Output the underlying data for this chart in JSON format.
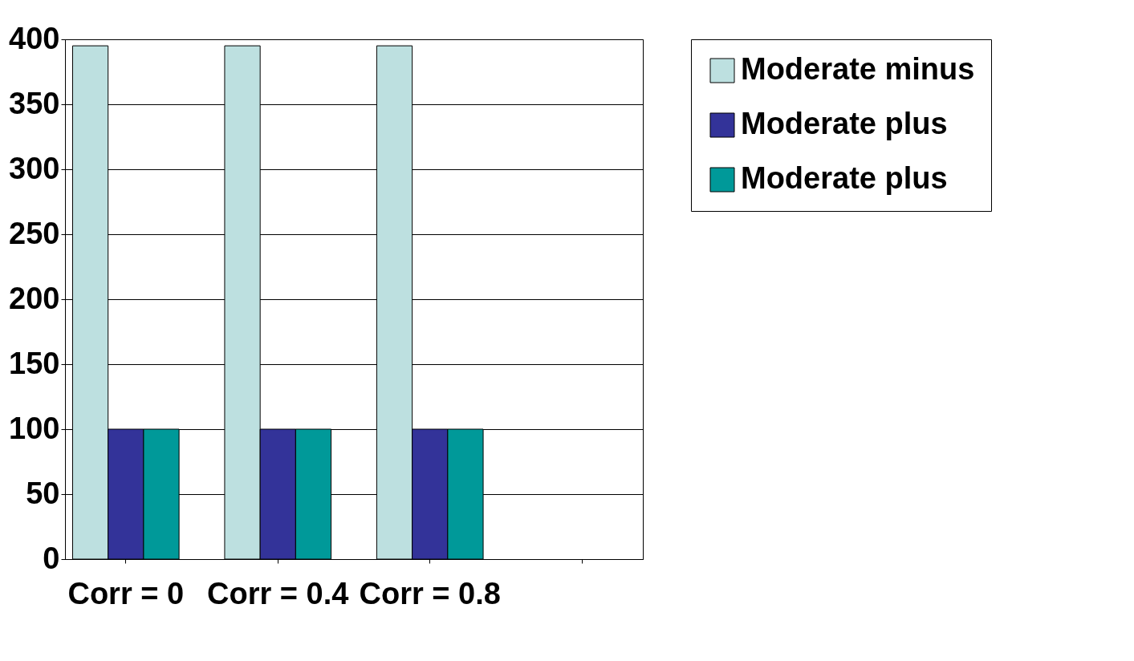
{
  "chart_data": {
    "type": "bar",
    "categories": [
      "Corr = 0",
      "Corr = 0.4",
      "Corr = 0.8",
      null
    ],
    "series": [
      {
        "name": "Moderate minus",
        "color": "#bde0e0",
        "values": [
          395,
          395,
          395,
          null
        ]
      },
      {
        "name": "Moderate plus",
        "color": "#333399",
        "values": [
          100,
          100,
          100,
          null
        ]
      },
      {
        "name": "Moderate plus",
        "color": "#009999",
        "values": [
          100,
          100,
          100,
          null
        ]
      }
    ],
    "ylim": [
      0,
      400
    ],
    "yticks": [
      0,
      50,
      100,
      150,
      200,
      250,
      300,
      350,
      400
    ],
    "grid": "y",
    "legend": "right"
  }
}
